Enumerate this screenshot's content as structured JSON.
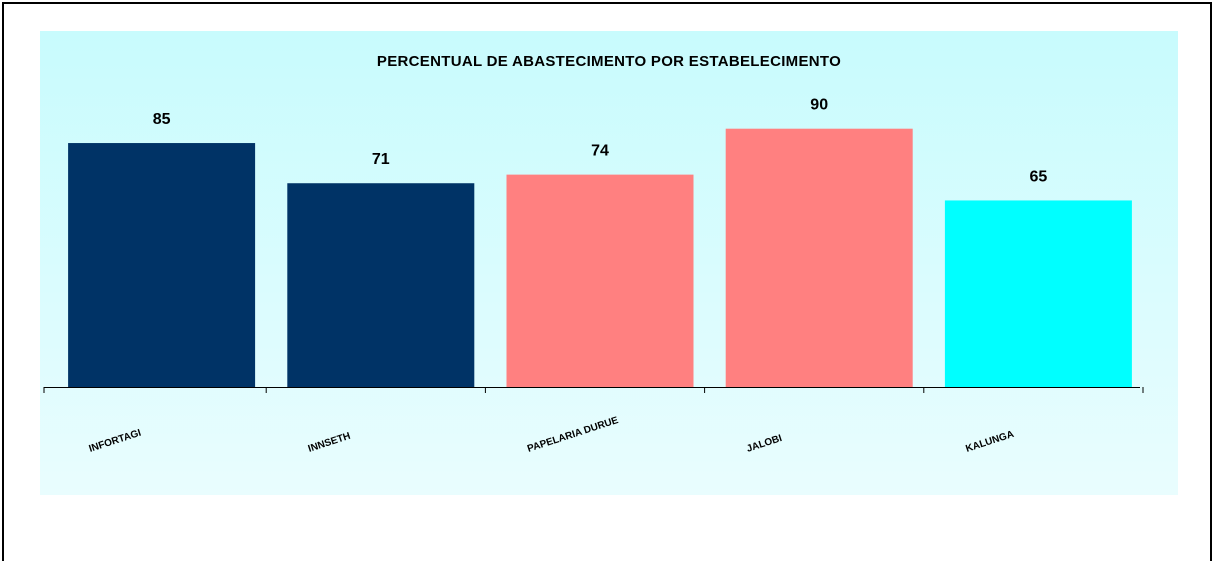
{
  "chart_data": {
    "type": "bar",
    "title": "PERCENTUAL DE ABASTECIMENTO POR ESTABELECIMENTO",
    "categories": [
      "INFORTAGI",
      "INNSETH",
      "PAPELARIA DURUE",
      "JALOBI",
      "KALUNGA"
    ],
    "values": [
      85,
      71,
      74,
      90,
      65
    ],
    "colors": [
      "#003366",
      "#003366",
      "#ff8080",
      "#ff8080",
      "#00ffff"
    ],
    "ylim": [
      0,
      100
    ],
    "grid": false,
    "legend": "none"
  }
}
